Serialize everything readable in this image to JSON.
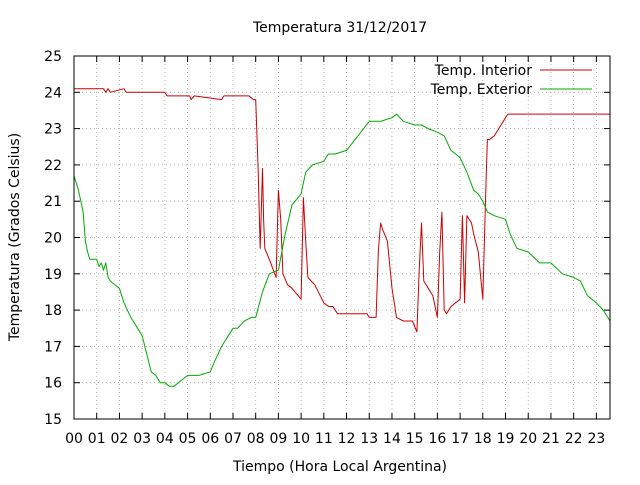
{
  "chart_data": {
    "type": "line",
    "title": "Temperatura 31/12/2017",
    "xlabel": "Tiempo (Hora Local Argentina)",
    "ylabel": "Temperatura (Grados Celsius)",
    "xlim": [
      0,
      23.6
    ],
    "ylim": [
      15,
      25
    ],
    "xticks": [
      0,
      1,
      2,
      3,
      4,
      5,
      6,
      7,
      8,
      9,
      10,
      11,
      12,
      13,
      14,
      15,
      16,
      17,
      18,
      19,
      20,
      21,
      22,
      23
    ],
    "xtick_labels": [
      "00",
      "01",
      "02",
      "03",
      "04",
      "05",
      "06",
      "07",
      "08",
      "09",
      "10",
      "11",
      "12",
      "13",
      "14",
      "15",
      "16",
      "17",
      "18",
      "19",
      "20",
      "21",
      "22",
      "23"
    ],
    "yticks": [
      15,
      16,
      17,
      18,
      19,
      20,
      21,
      22,
      23,
      24,
      25
    ],
    "ytick_labels": [
      "15",
      "16",
      "17",
      "18",
      "19",
      "20",
      "21",
      "22",
      "23",
      "24",
      "25"
    ],
    "grid": true,
    "legend_position": "top-right",
    "series": [
      {
        "name": "Temp. Interior",
        "color": "#cc0000",
        "x": [
          0.0,
          1.3,
          1.4,
          1.5,
          1.6,
          2.2,
          2.3,
          3.0,
          4.0,
          4.1,
          4.3,
          5.1,
          5.15,
          5.3,
          6.5,
          6.6,
          7.7,
          7.9,
          8.0,
          8.1,
          8.2,
          8.3,
          8.35,
          8.4,
          8.6,
          8.9,
          9.0,
          9.1,
          9.2,
          9.4,
          9.6,
          10.0,
          10.1,
          10.2,
          10.3,
          10.45,
          10.6,
          11.0,
          11.2,
          11.4,
          11.6,
          11.8,
          12.5,
          12.9,
          13.0,
          13.3,
          13.4,
          13.5,
          13.6,
          13.8,
          14.0,
          14.2,
          14.5,
          14.9,
          15.1,
          15.2,
          15.3,
          15.4,
          15.6,
          15.8,
          16.0,
          16.1,
          16.2,
          16.3,
          16.4,
          16.6,
          17.0,
          17.1,
          17.2,
          17.3,
          17.5,
          17.6,
          17.8,
          18.0,
          18.1,
          18.15,
          18.2,
          18.3,
          18.5,
          18.9,
          19.0,
          19.1,
          19.2,
          19.3,
          19.5,
          20.0,
          21.0,
          22.0,
          23.0,
          23.6
        ],
        "y": [
          24.1,
          24.1,
          24.0,
          24.1,
          24.0,
          24.1,
          24.0,
          24.0,
          24.0,
          23.9,
          23.9,
          23.9,
          23.8,
          23.9,
          23.8,
          23.9,
          23.9,
          23.8,
          23.8,
          22.0,
          19.7,
          21.9,
          20.5,
          19.7,
          19.4,
          18.9,
          21.3,
          20.5,
          19.0,
          18.7,
          18.6,
          18.3,
          21.1,
          19.9,
          18.9,
          18.8,
          18.7,
          18.2,
          18.1,
          18.1,
          17.9,
          17.9,
          17.9,
          17.9,
          17.8,
          17.8,
          19.6,
          20.4,
          20.2,
          19.9,
          18.6,
          17.8,
          17.7,
          17.7,
          17.4,
          19.1,
          20.4,
          18.8,
          18.6,
          18.4,
          17.8,
          19.6,
          20.7,
          18.0,
          17.9,
          18.1,
          18.3,
          20.6,
          18.2,
          20.6,
          20.4,
          20.1,
          19.6,
          18.3,
          20.6,
          21.7,
          22.7,
          22.7,
          22.8,
          23.2,
          23.3,
          23.4,
          23.4,
          23.4,
          23.4,
          23.4,
          23.4,
          23.4,
          23.4,
          23.4
        ]
      },
      {
        "name": "Temp. Exterior",
        "color": "#00aa00",
        "x": [
          0.0,
          0.2,
          0.4,
          0.5,
          0.6,
          0.7,
          1.0,
          1.1,
          1.2,
          1.3,
          1.4,
          1.5,
          1.6,
          2.0,
          2.2,
          2.5,
          2.8,
          3.0,
          3.2,
          3.4,
          3.6,
          3.8,
          4.0,
          4.2,
          4.4,
          4.6,
          4.8,
          5.0,
          5.5,
          6.0,
          6.2,
          6.5,
          7.0,
          7.2,
          7.5,
          7.8,
          8.0,
          8.3,
          8.6,
          9.0,
          9.3,
          9.6,
          10.0,
          10.2,
          10.5,
          11.0,
          11.2,
          11.5,
          12.0,
          12.5,
          13.0,
          13.5,
          14.0,
          14.2,
          14.5,
          15.0,
          15.3,
          15.6,
          16.0,
          16.3,
          16.6,
          16.8,
          17.0,
          17.3,
          17.6,
          17.8,
          18.0,
          18.2,
          18.5,
          19.0,
          19.2,
          19.5,
          20.0,
          20.5,
          21.0,
          21.5,
          22.0,
          22.3,
          22.6,
          23.0,
          23.3,
          23.6
        ],
        "y": [
          21.7,
          21.3,
          20.7,
          19.9,
          19.6,
          19.4,
          19.4,
          19.2,
          19.3,
          19.1,
          19.3,
          18.9,
          18.8,
          18.6,
          18.2,
          17.8,
          17.5,
          17.3,
          16.8,
          16.3,
          16.2,
          16.0,
          16.0,
          15.9,
          15.9,
          16.0,
          16.1,
          16.2,
          16.2,
          16.3,
          16.6,
          17.0,
          17.5,
          17.5,
          17.7,
          17.8,
          17.8,
          18.5,
          19.0,
          19.1,
          20.1,
          20.9,
          21.2,
          21.8,
          22.0,
          22.1,
          22.3,
          22.3,
          22.4,
          22.8,
          23.2,
          23.2,
          23.3,
          23.4,
          23.2,
          23.1,
          23.1,
          23.0,
          22.9,
          22.8,
          22.4,
          22.3,
          22.2,
          21.8,
          21.3,
          21.2,
          21.0,
          20.7,
          20.6,
          20.5,
          20.1,
          19.7,
          19.6,
          19.3,
          19.3,
          19.0,
          18.9,
          18.8,
          18.4,
          18.2,
          18.0,
          17.7
        ]
      }
    ]
  }
}
